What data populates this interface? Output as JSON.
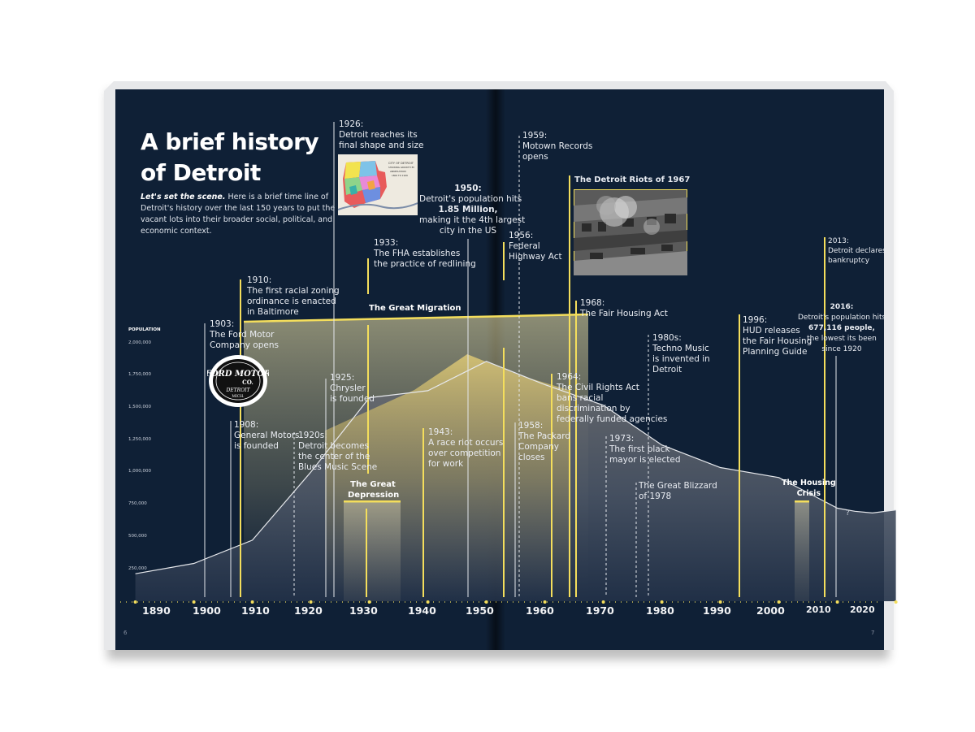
{
  "title_line1": "A brief history",
  "title_line2": "of Detroit",
  "intro_lead": "Let's set the scene.",
  "intro_body": "Here is a brief time line of Detroit's history over the last 150 years to put the vacant lots into their broader social, political, and economic context.",
  "page_numbers": {
    "left": "6",
    "right": "7"
  },
  "colors": {
    "background": "#0f2036",
    "accent": "#f4de5c",
    "area": "#b8a55e",
    "line": "#ffffff"
  },
  "chart_data": {
    "type": "area",
    "ylabel": "POPULATION",
    "yticks": [
      "2,000,000",
      "1,750,000",
      "1,500,000",
      "1,250,000",
      "1,000,000",
      "750,000",
      "500,000",
      "250,000"
    ],
    "ylim": [
      0,
      2000000
    ],
    "xticks": [
      "1890",
      "1900",
      "1910",
      "1920",
      "1930",
      "1940",
      "1950",
      "1960",
      "1970",
      "1980",
      "1990",
      "2000",
      "2010",
      "2020"
    ],
    "xlim": [
      1890,
      2020
    ],
    "population": {
      "x": [
        1890,
        1900,
        1910,
        1920,
        1930,
        1940,
        1950,
        1960,
        1970,
        1980,
        1990,
        2000,
        2010,
        2013,
        2016,
        2020
      ],
      "y": [
        206000,
        286000,
        466000,
        994000,
        1569000,
        1623000,
        1850000,
        1670000,
        1511000,
        1203000,
        1028000,
        951000,
        714000,
        690000,
        677000,
        700000
      ]
    },
    "annotation_unknown": "?",
    "periods": [
      {
        "label": "The Great Migration",
        "start": 1910,
        "end": 1970
      },
      {
        "label_line1": "The Great",
        "label_line2": "Depression",
        "start": 1929,
        "end": 1939
      },
      {
        "label_line1": "The Housing",
        "label_line2": "Crisis",
        "start": 2007,
        "end": 2009
      }
    ]
  },
  "events": {
    "e1903": {
      "l1": "1903:",
      "l2": "The Ford Motor",
      "l3": "Company opens"
    },
    "e1908": {
      "l1": "1908:",
      "l2": "General Motors",
      "l3": "is founded"
    },
    "e1910": {
      "l1": "1910:",
      "l2": "The first racial zoning",
      "l3": "ordinance  is enacted",
      "l4": "in Baltimore"
    },
    "e1920s": {
      "l1": "1920s:",
      "l2": "Detroit becomes",
      "l3": "the center of the",
      "l4": "Blues Music Scene"
    },
    "e1925": {
      "l1": "1925:",
      "l2": "Chrysler",
      "l3": "is founded"
    },
    "e1926": {
      "l1": "1926:",
      "l2": "Detroit reaches its",
      "l3": "final shape and size"
    },
    "e1933": {
      "l1": "1933:",
      "l2": "The FHA establishes",
      "l3": "the practice of redlining"
    },
    "e1943": {
      "l1": "1943:",
      "l2": "A race riot occurs",
      "l3": "over competition",
      "l4": "for work"
    },
    "e1950": {
      "l1": "1950:",
      "l2": "Detroit's population hits",
      "l3": "1.85 Million,",
      "l4": "making it the 4th largest",
      "l5": "city in the US"
    },
    "e1956": {
      "l1": "1956:",
      "l2": "Federal",
      "l3": "Highway Act"
    },
    "e1958": {
      "l1": "1958:",
      "l2": "The Packard",
      "l3": "Company",
      "l4": "closes"
    },
    "e1959": {
      "l1": "1959:",
      "l2": "Motown Records",
      "l3": "opens"
    },
    "e1964": {
      "l1": "1964:",
      "l2": "The Civil Rights Act",
      "l3": "bans racial",
      "l4": "discrimination by",
      "l5": "federally funded agencies"
    },
    "e1967": {
      "l1": "The Detroit Riots of 1967"
    },
    "e1968": {
      "l1": "1968:",
      "l2": "The Fair Housing Act"
    },
    "e1973": {
      "l1": "1973:",
      "l2": "The first black",
      "l3": "mayor is elected"
    },
    "e1978": {
      "l1": "The Great Blizzard",
      "l2": "of 1978"
    },
    "e1980s": {
      "l1": "1980s:",
      "l2": "Techno Music",
      "l3": "is invented in",
      "l4": "Detroit"
    },
    "e1996": {
      "l1": "1996:",
      "l2": "HUD releases",
      "l3": "the Fair Housing",
      "l4": "Planning Guide"
    },
    "e2013": {
      "l1": "2013:",
      "l2": "Detroit declares",
      "l3": "bankruptcy"
    },
    "e2016": {
      "l1": "2016:",
      "l2": "Detroit's population hits",
      "l3": "677,116 people,",
      "l4": "the lowest its been",
      "l5": "since 1920"
    }
  },
  "ford_logo": {
    "l1": "FORD MOTOR",
    "l2": "CO.",
    "l3": "DETROIT",
    "l4": "MICH."
  },
  "map_text": {
    "l1": "CITY OF DETROIT",
    "l2": "SHOWING GROWTH BY",
    "l3": "ANNEXATION",
    "l4": "1806 TO 1926"
  }
}
